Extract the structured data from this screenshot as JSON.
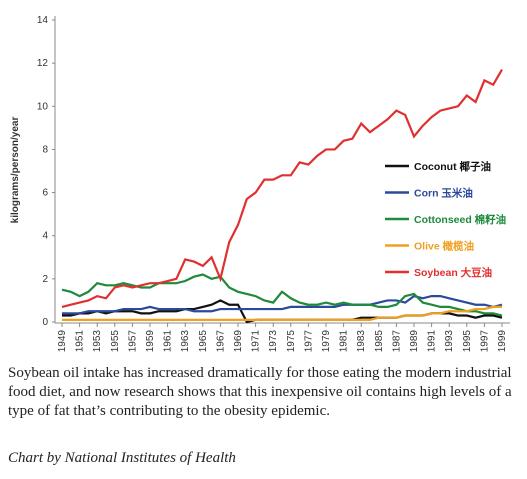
{
  "chart_data": {
    "type": "line",
    "y_label": "kilograms/person/year",
    "x": [
      1949,
      1950,
      1951,
      1952,
      1953,
      1954,
      1955,
      1956,
      1957,
      1958,
      1959,
      1960,
      1961,
      1962,
      1963,
      1964,
      1965,
      1966,
      1967,
      1968,
      1969,
      1970,
      1971,
      1972,
      1973,
      1974,
      1975,
      1976,
      1977,
      1978,
      1979,
      1980,
      1981,
      1982,
      1983,
      1984,
      1985,
      1986,
      1987,
      1988,
      1989,
      1990,
      1991,
      1992,
      1993,
      1994,
      1995,
      1996,
      1997,
      1998,
      1999
    ],
    "xlim": [
      1949,
      1999
    ],
    "xticks": [
      1949,
      1951,
      1953,
      1955,
      1957,
      1959,
      1961,
      1963,
      1965,
      1967,
      1969,
      1971,
      1973,
      1975,
      1977,
      1979,
      1981,
      1983,
      1985,
      1987,
      1989,
      1991,
      1993,
      1995,
      1997,
      1999
    ],
    "ylim": [
      0,
      14
    ],
    "yticks": [
      0,
      2,
      4,
      6,
      8,
      10,
      12,
      14
    ],
    "series": [
      {
        "name": "Coconut 椰子油",
        "color": "#111111",
        "values": [
          0.3,
          0.3,
          0.4,
          0.4,
          0.5,
          0.4,
          0.5,
          0.5,
          0.5,
          0.4,
          0.4,
          0.5,
          0.5,
          0.5,
          0.6,
          0.6,
          0.7,
          0.8,
          1.0,
          0.8,
          0.8,
          0.0,
          0.1,
          0.1,
          0.1,
          0.1,
          0.1,
          0.1,
          0.1,
          0.1,
          0.1,
          0.1,
          0.1,
          0.1,
          0.2,
          0.2,
          0.2,
          0.2,
          0.2,
          0.3,
          0.3,
          0.3,
          0.4,
          0.4,
          0.4,
          0.3,
          0.3,
          0.2,
          0.3,
          0.3,
          0.2
        ]
      },
      {
        "name": "Corn 玉米油",
        "color": "#2b4a9c",
        "values": [
          0.4,
          0.4,
          0.4,
          0.5,
          0.5,
          0.5,
          0.5,
          0.6,
          0.6,
          0.6,
          0.7,
          0.6,
          0.6,
          0.6,
          0.6,
          0.5,
          0.5,
          0.5,
          0.6,
          0.6,
          0.6,
          0.6,
          0.6,
          0.6,
          0.6,
          0.6,
          0.7,
          0.7,
          0.7,
          0.7,
          0.7,
          0.7,
          0.8,
          0.8,
          0.8,
          0.8,
          0.9,
          1.0,
          1.0,
          0.9,
          1.2,
          1.1,
          1.2,
          1.2,
          1.1,
          1.0,
          0.9,
          0.8,
          0.8,
          0.7,
          0.8
        ]
      },
      {
        "name": "Cottonseed 棉籽油",
        "color": "#1f8a3c",
        "values": [
          1.5,
          1.4,
          1.2,
          1.4,
          1.8,
          1.7,
          1.7,
          1.8,
          1.7,
          1.6,
          1.6,
          1.8,
          1.8,
          1.8,
          1.9,
          2.1,
          2.2,
          2.0,
          2.1,
          1.6,
          1.4,
          1.3,
          1.2,
          1.0,
          0.9,
          1.4,
          1.1,
          0.9,
          0.8,
          0.8,
          0.9,
          0.8,
          0.9,
          0.8,
          0.8,
          0.8,
          0.7,
          0.7,
          0.8,
          1.2,
          1.3,
          0.9,
          0.8,
          0.7,
          0.7,
          0.6,
          0.5,
          0.5,
          0.4,
          0.4,
          0.3
        ]
      },
      {
        "name": "Olive 橄榄油",
        "color": "#f0a020",
        "values": [
          0.1,
          0.1,
          0.1,
          0.1,
          0.1,
          0.1,
          0.1,
          0.1,
          0.1,
          0.1,
          0.1,
          0.1,
          0.1,
          0.1,
          0.1,
          0.1,
          0.1,
          0.1,
          0.1,
          0.1,
          0.1,
          0.1,
          0.1,
          0.1,
          0.1,
          0.1,
          0.1,
          0.1,
          0.1,
          0.1,
          0.1,
          0.1,
          0.1,
          0.1,
          0.1,
          0.1,
          0.2,
          0.2,
          0.2,
          0.3,
          0.3,
          0.3,
          0.4,
          0.4,
          0.5,
          0.5,
          0.5,
          0.6,
          0.6,
          0.7,
          0.7
        ]
      },
      {
        "name": "Soybean 大豆油",
        "color": "#e03030",
        "values": [
          0.7,
          0.8,
          0.9,
          1.0,
          1.2,
          1.1,
          1.6,
          1.7,
          1.6,
          1.7,
          1.8,
          1.8,
          1.9,
          2.0,
          2.9,
          2.8,
          2.6,
          3.0,
          2.0,
          3.7,
          4.5,
          5.7,
          6.0,
          6.6,
          6.6,
          6.8,
          6.8,
          7.4,
          7.3,
          7.7,
          8.0,
          8.0,
          8.4,
          8.5,
          9.2,
          8.8,
          9.1,
          9.4,
          9.8,
          9.6,
          8.6,
          9.1,
          9.5,
          9.8,
          9.9,
          10.0,
          10.5,
          10.2,
          11.2,
          11.0,
          11.7
        ]
      }
    ],
    "caption": "Soybean oil intake has increased dramatically for those eating the modern industrial food diet, and now research shows that this inexpensive oil contains high levels of a type of fat that’s contributing to the obesity epidemic.",
    "source": "Chart by National Institutes of Health"
  }
}
